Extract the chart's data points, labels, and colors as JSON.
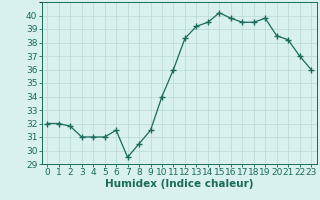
{
  "x": [
    0,
    1,
    2,
    3,
    4,
    5,
    6,
    7,
    8,
    9,
    10,
    11,
    12,
    13,
    14,
    15,
    16,
    17,
    18,
    19,
    20,
    21,
    22,
    23
  ],
  "y": [
    32,
    32,
    31.8,
    31,
    31,
    31,
    31.5,
    29.5,
    30.5,
    31.5,
    34,
    36,
    38.3,
    39.2,
    39.5,
    40.2,
    39.8,
    39.5,
    39.5,
    39.8,
    38.5,
    38.2,
    37,
    36
  ],
  "line_color": "#1a6b5a",
  "marker": "+",
  "marker_size": 4,
  "bg_color": "#d8f0ee",
  "grid_color": "#b8d8d4",
  "xlabel": "Humidex (Indice chaleur)",
  "xlim": [
    -0.5,
    23.5
  ],
  "ylim": [
    29,
    41
  ],
  "yticks": [
    29,
    30,
    31,
    32,
    33,
    34,
    35,
    36,
    37,
    38,
    39,
    40
  ],
  "xticks": [
    0,
    1,
    2,
    3,
    4,
    5,
    6,
    7,
    8,
    9,
    10,
    11,
    12,
    13,
    14,
    15,
    16,
    17,
    18,
    19,
    20,
    21,
    22,
    23
  ],
  "xlabel_fontsize": 7.5,
  "tick_fontsize": 6.5
}
